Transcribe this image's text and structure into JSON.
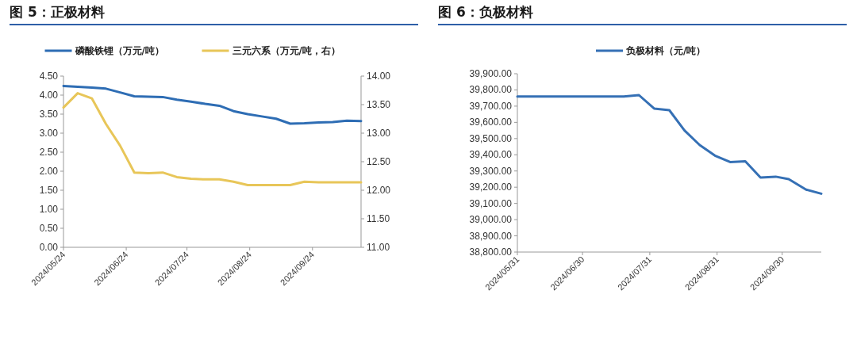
{
  "chart_data": [
    {
      "type": "line",
      "title": "图 5：正极材料",
      "legend": "top",
      "x": [
        "2024-05-24",
        "2024-05-31",
        "2024-06-07",
        "2024-06-14",
        "2024-06-21",
        "2024-06-28",
        "2024-07-05",
        "2024-07-12",
        "2024-07-19",
        "2024-07-26",
        "2024-08-02",
        "2024-08-09",
        "2024-08-16",
        "2024-08-23",
        "2024-08-30",
        "2024-09-06",
        "2024-09-13",
        "2024-09-20",
        "2024-09-27",
        "2024-10-04",
        "2024-10-11",
        "2024-10-18"
      ],
      "series": [
        {
          "name": "磷酸铁锂（万元/吨）",
          "color": "#2e6db4",
          "values": [
            4.24,
            4.22,
            4.2,
            4.17,
            4.07,
            3.97,
            3.96,
            3.95,
            3.88,
            3.83,
            3.77,
            3.72,
            3.58,
            3.5,
            3.44,
            3.38,
            3.25,
            3.26,
            3.28,
            3.29,
            3.33,
            3.32
          ]
        },
        {
          "name": "三元六系（万元/吨，右）",
          "color": "#e8c659",
          "axis": "y2",
          "values": [
            13.45,
            13.7,
            13.61,
            13.16,
            12.78,
            12.31,
            12.3,
            12.31,
            12.23,
            12.2,
            12.19,
            12.19,
            12.15,
            12.09,
            12.09,
            12.09,
            12.09,
            12.15,
            12.14,
            12.14,
            12.14,
            12.14
          ]
        }
      ],
      "xlim": [
        "2024-05-24",
        "2024-10-18"
      ],
      "xticks": [
        {
          "value": "2024-05-24",
          "label": "2024/05/24"
        },
        {
          "value": "2024-06-24",
          "label": "2024/06/24"
        },
        {
          "value": "2024-07-24",
          "label": "2024/07/24"
        },
        {
          "value": "2024-08-24",
          "label": "2024/08/24"
        },
        {
          "value": "2024-09-24",
          "label": "2024/09/24"
        }
      ],
      "ylim": [
        0,
        4.5
      ],
      "yticks": [
        {
          "value": 0,
          "label": "0.00"
        },
        {
          "value": 0.5,
          "label": "0.50"
        },
        {
          "value": 1,
          "label": "1.00"
        },
        {
          "value": 1.5,
          "label": "1.50"
        },
        {
          "value": 2,
          "label": "2.00"
        },
        {
          "value": 2.5,
          "label": "2.50"
        },
        {
          "value": 3,
          "label": "3.00"
        },
        {
          "value": 3.5,
          "label": "3.50"
        },
        {
          "value": 4,
          "label": "4.00"
        },
        {
          "value": 4.5,
          "label": "4.50"
        }
      ],
      "y2lim": [
        11,
        14
      ],
      "y2ticks": [
        {
          "value": 11,
          "label": "11.00"
        },
        {
          "value": 11.5,
          "label": "11.50"
        },
        {
          "value": 12,
          "label": "12.00"
        },
        {
          "value": 12.5,
          "label": "12.50"
        },
        {
          "value": 13,
          "label": "13.00"
        },
        {
          "value": 13.5,
          "label": "13.50"
        },
        {
          "value": 14,
          "label": "14.00"
        }
      ]
    },
    {
      "type": "line",
      "title": "图 6：负极材料",
      "legend": "top",
      "x": [
        "2024-05-31",
        "2024-06-07",
        "2024-06-14",
        "2024-06-21",
        "2024-06-28",
        "2024-07-05",
        "2024-07-12",
        "2024-07-19",
        "2024-07-26",
        "2024-08-02",
        "2024-08-09",
        "2024-08-16",
        "2024-08-23",
        "2024-08-30",
        "2024-09-06",
        "2024-09-13",
        "2024-09-20",
        "2024-09-27",
        "2024-10-03",
        "2024-10-11",
        "2024-10-18"
      ],
      "series": [
        {
          "name": "负极材料（元/吨）",
          "color": "#3570b5",
          "values": [
            39760,
            39760,
            39760,
            39760,
            39760,
            39760,
            39760,
            39760,
            39768,
            39685,
            39675,
            39550,
            39460,
            39395,
            39355,
            39360,
            39260,
            39265,
            39250,
            39185,
            39160
          ]
        }
      ],
      "xlim": [
        "2024-05-31",
        "2024-10-18"
      ],
      "xticks": [
        {
          "value": "2024-05-31",
          "label": "2024/05/31"
        },
        {
          "value": "2024-06-30",
          "label": "2024/06/30"
        },
        {
          "value": "2024-07-31",
          "label": "2024/07/31"
        },
        {
          "value": "2024-08-31",
          "label": "2024/08/31"
        },
        {
          "value": "2024-09-30",
          "label": "2024/09/30"
        }
      ],
      "ylim": [
        38800,
        39900
      ],
      "yticks": [
        {
          "value": 38800,
          "label": "38,800.00"
        },
        {
          "value": 38900,
          "label": "38,900.00"
        },
        {
          "value": 39000,
          "label": "39,000.00"
        },
        {
          "value": 39100,
          "label": "39,100.00"
        },
        {
          "value": 39200,
          "label": "39,200.00"
        },
        {
          "value": 39300,
          "label": "39,300.00"
        },
        {
          "value": 39400,
          "label": "39,400.00"
        },
        {
          "value": 39500,
          "label": "39,500.00"
        },
        {
          "value": 39600,
          "label": "39,600.00"
        },
        {
          "value": 39700,
          "label": "39,700.00"
        },
        {
          "value": 39800,
          "label": "39,800.00"
        },
        {
          "value": 39900,
          "label": "39,900.00"
        }
      ]
    }
  ]
}
